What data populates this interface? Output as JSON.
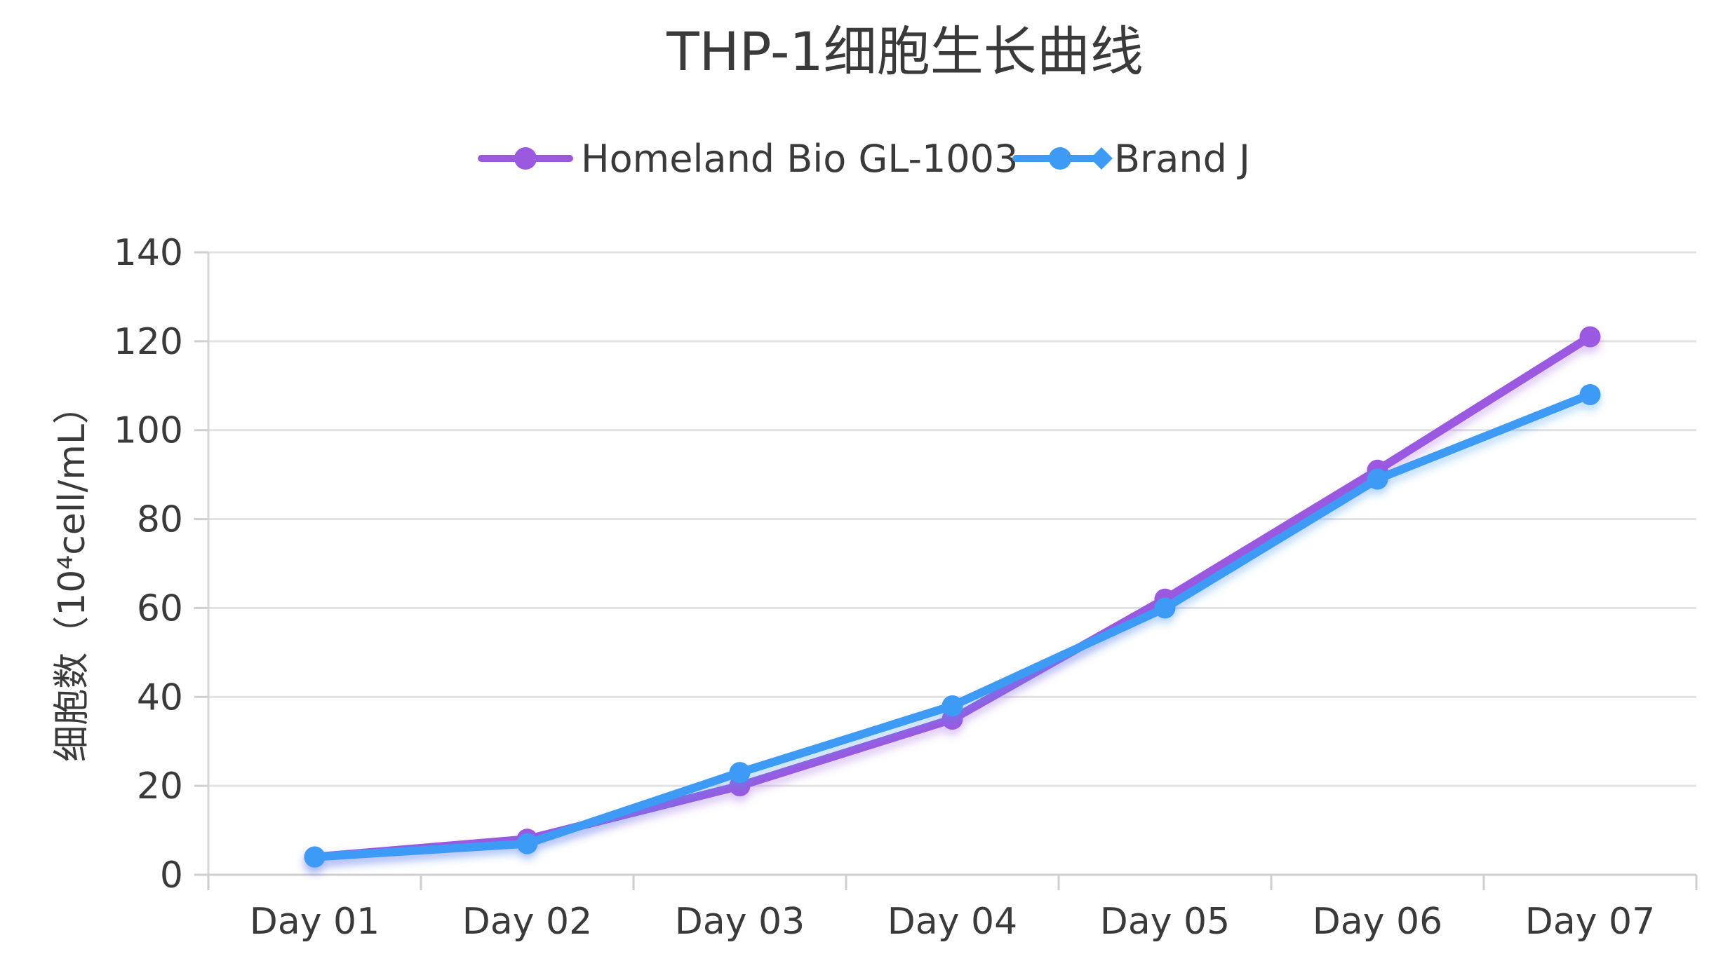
{
  "chart_data": {
    "type": "line",
    "title": "THP-1细胞生长曲线",
    "xlabel": "",
    "ylabel": "细胞数（10⁴cell/mL）",
    "categories": [
      "Day 01",
      "Day 02",
      "Day 03",
      "Day 04",
      "Day 05",
      "Day 06",
      "Day 07"
    ],
    "ylim": [
      0,
      140
    ],
    "yticks": [
      "0",
      "20",
      "40",
      "60",
      "80",
      "100",
      "120",
      "140"
    ],
    "grid": "horizontal",
    "legend_position": "top-center",
    "series": [
      {
        "name": "Homeland Bio GL-1003",
        "color": "#9b59e0",
        "marker": "circle",
        "values": [
          4,
          8,
          20,
          35,
          62,
          91,
          121
        ]
      },
      {
        "name": "Brand J",
        "color": "#3d9bf5",
        "marker": "circle",
        "values": [
          4,
          7,
          23,
          38,
          60,
          89,
          108
        ]
      }
    ]
  }
}
